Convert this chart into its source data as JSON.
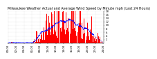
{
  "title": "Milwaukee Weather Actual and Average Wind Speed by Minute mph (Last 24 Hours)",
  "bar_color": "#ff0000",
  "line_color": "#0000ff",
  "background_color": "#ffffff",
  "plot_bg_color": "#ffffff",
  "grid_color": "#c8c8c8",
  "ylim": [
    0,
    18
  ],
  "yticks": [
    2,
    4,
    6,
    8,
    10,
    12,
    14,
    16,
    18
  ],
  "n_points": 1440,
  "title_fontsize": 3.5,
  "tick_fontsize": 2.8
}
